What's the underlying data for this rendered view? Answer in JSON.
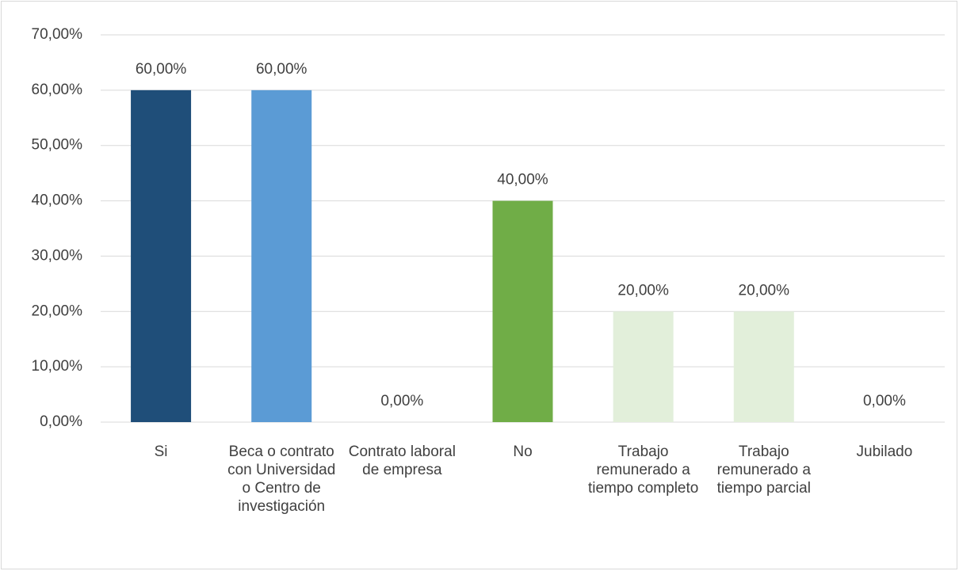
{
  "chart_data": {
    "type": "bar",
    "categories": [
      "Si",
      "Beca o contrato con Universidad o Centro de investigación",
      "Contrato laboral de empresa",
      "No",
      "Trabajo remunerado a tiempo completo",
      "Trabajo remunerado a tiempo parcial",
      "Jubilado"
    ],
    "values": [
      60,
      60,
      0,
      40,
      20,
      20,
      0
    ],
    "value_labels": [
      "60,00%",
      "60,00%",
      "0,00%",
      "40,00%",
      "20,00%",
      "20,00%",
      "0,00%"
    ],
    "colors": [
      "#1f4e79",
      "#5b9bd5",
      "#5b9bd5",
      "#70ad47",
      "#e2efda",
      "#e2efda",
      "#e2efda"
    ],
    "ylim": [
      0,
      70
    ],
    "yticks": [
      {
        "value": 0,
        "label": "0,00%"
      },
      {
        "value": 10,
        "label": "10,00%"
      },
      {
        "value": 20,
        "label": "20,00%"
      },
      {
        "value": 30,
        "label": "30,00%"
      },
      {
        "value": 40,
        "label": "40,00%"
      },
      {
        "value": 50,
        "label": "50,00%"
      },
      {
        "value": 60,
        "label": "60,00%"
      },
      {
        "value": 70,
        "label": "70,00%"
      }
    ],
    "grid": true
  }
}
